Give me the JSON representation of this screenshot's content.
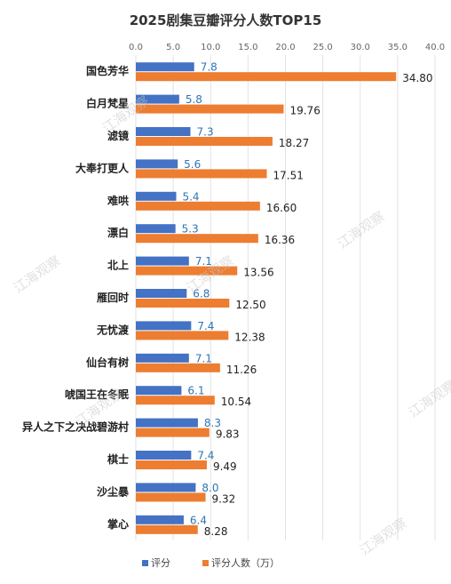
{
  "chart_data": {
    "type": "bar",
    "orientation": "horizontal",
    "title": "2025剧集豆瓣评分人数TOP15",
    "categories": [
      "国色芳华",
      "白月梵星",
      "滤镜",
      "大奉打更人",
      "难哄",
      "漂白",
      "北上",
      "雁回时",
      "无忧渡",
      "仙台有树",
      "唬国王在冬眠",
      "异人之下之决战碧游村",
      "棋士",
      "沙尘暴",
      "掌心"
    ],
    "series": [
      {
        "name": "评分",
        "color": "#4472c4",
        "values": [
          7.8,
          5.8,
          7.3,
          5.6,
          5.4,
          5.3,
          7.1,
          6.8,
          7.4,
          7.1,
          6.1,
          8.3,
          7.4,
          8.0,
          6.4
        ],
        "labels": [
          "7.8",
          "5.8",
          "7.3",
          "5.6",
          "5.4",
          "5.3",
          "7.1",
          "6.8",
          "7.4",
          "7.1",
          "6.1",
          "8.3",
          "7.4",
          "8.0",
          "6.4"
        ]
      },
      {
        "name": "评分人数（万）",
        "color": "#ed7d31",
        "values": [
          34.8,
          19.76,
          18.27,
          17.51,
          16.6,
          16.36,
          13.56,
          12.5,
          12.38,
          11.26,
          10.54,
          9.83,
          9.49,
          9.32,
          8.28
        ],
        "labels": [
          "34.80",
          "19.76",
          "18.27",
          "17.51",
          "16.60",
          "16.36",
          "13.56",
          "12.50",
          "12.38",
          "11.26",
          "10.54",
          "9.83",
          "9.49",
          "9.32",
          "8.28"
        ]
      }
    ],
    "xlim": [
      0,
      40
    ],
    "xticks": [
      "0.0",
      "5.0",
      "10.0",
      "15.0",
      "20.0",
      "25.0",
      "30.0",
      "35.0",
      "40.0"
    ],
    "grid": true,
    "legend": "bottom"
  },
  "watermark": "江海观察"
}
